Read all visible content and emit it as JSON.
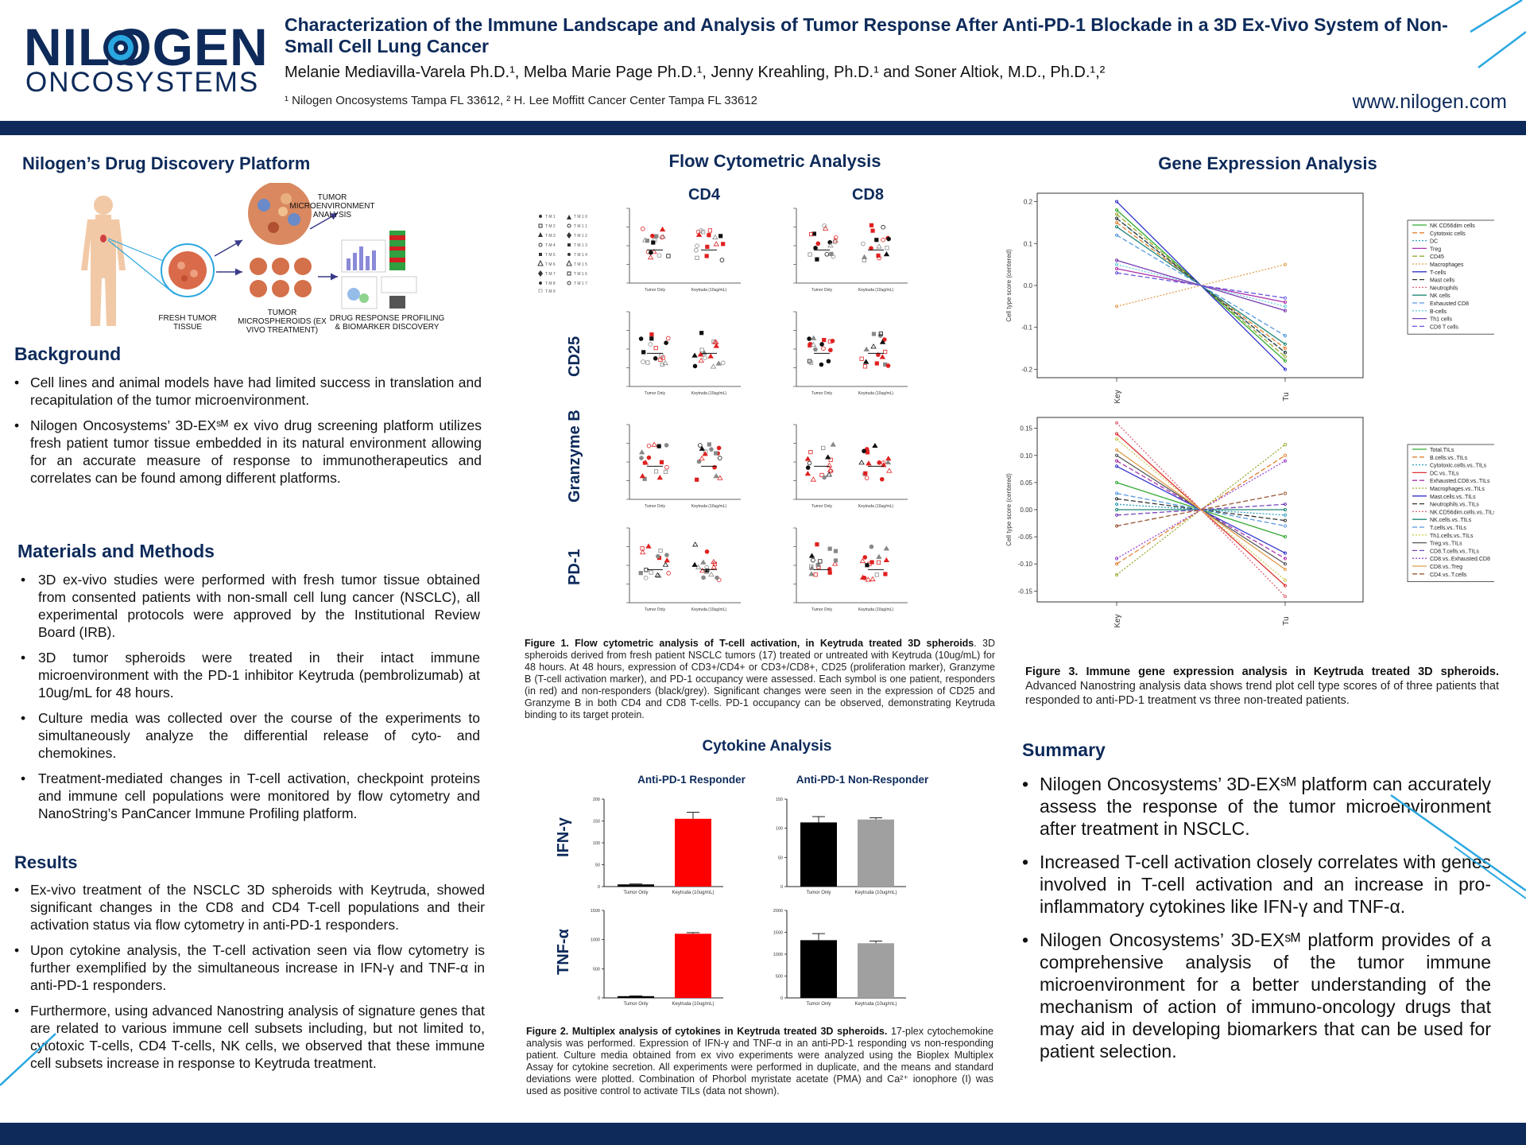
{
  "header": {
    "logo_top": "NILOGEN",
    "logo_bottom": "ONCOSYSTEMS",
    "title": "Characterization of the Immune Landscape and Analysis of Tumor Response After Anti-PD-1 Blockade in a 3D Ex-Vivo System of Non-Small Cell Lung Cancer",
    "authors": "Melanie Mediavilla-Varela Ph.D.¹, Melba Marie Page Ph.D.¹, Jenny Kreahling, Ph.D.¹ and Soner Altiok, M.D., Ph.D.¹,²",
    "affiliations": "¹ Nilogen Oncosystems Tampa FL 33612, ² H. Lee Moffitt Cancer Center Tampa FL 33612",
    "website": "www.nilogen.com"
  },
  "platform": {
    "heading": "Nilogen’s Drug Discovery Platform",
    "label_tme": "TUMOR MICROENVIRONMENT ANALYSIS",
    "label_fresh": "FRESH TUMOR TISSUE",
    "label_spheroids": "TUMOR MICROSPHEROIDS (EX VIVO TREATMENT)",
    "label_profiling": "DRUG RESPONSE PROFILING & BIOMARKER DISCOVERY"
  },
  "background": {
    "heading": "Background",
    "items": [
      "Cell lines and animal models have had limited success in translation and recapitulation of the tumor microenvironment.",
      "Nilogen Oncosystems’ 3D-EXˢᴹ ex vivo drug screening platform utilizes fresh patient tumor tissue embedded in its natural environment allowing for an accurate measure of response to immunotherapeutics and correlates can be found among different platforms."
    ]
  },
  "methods": {
    "heading": "Materials and Methods",
    "items": [
      "3D ex-vivo studies were performed with fresh tumor tissue obtained from consented patients with non-small cell lung cancer (NSCLC), all experimental protocols were approved by the Institutional Review Board (IRB).",
      "3D tumor spheroids were treated in their intact immune microenvironment with the PD-1 inhibitor Keytruda (pembrolizumab) at 10ug/mL for 48 hours.",
      "Culture media was collected over the course of the experiments to simultaneously analyze the differential release of cyto- and chemokines.",
      "Treatment-mediated changes in T-cell activation, checkpoint proteins and immune cell populations were monitored by flow cytometry and NanoString’s PanCancer Immune Profiling platform."
    ]
  },
  "results": {
    "heading": "Results",
    "items": [
      "Ex-vivo treatment of the NSCLC 3D spheroids with Keytruda, showed significant changes in the CD8 and CD4 T-cell populations and their activation status via flow cytometry in anti-PD-1 responders.",
      "Upon cytokine analysis, the T-cell activation seen via flow cytometry is further exemplified by the simultaneous increase in IFN-γ and TNF-α in anti-PD-1 responders.",
      "Furthermore, using advanced Nanostring analysis of signature genes that are related to various immune cell subsets including, but not limited to, cytotoxic T-cells, CD4 T-cells, NK cells, we observed that these immune cell subsets increase in response to Keytruda treatment."
    ]
  },
  "flow": {
    "heading": "Flow Cytometric Analysis",
    "col_cd4": "CD4",
    "col_cd8": "CD8",
    "row_cd25": "CD25",
    "row_gzmb": "Granzyme B",
    "row_pd1": "PD-1",
    "xcat1": "Tumor Only",
    "xcat2": "Keytruda (10ug/mL)",
    "caption_bold": "Figure 1. Flow cytometric analysis of T-cell activation, in Keytruda treated 3D spheroids",
    "caption": ". 3D spheroids derived from fresh patient NSCLC tumors (17) treated or untreated with Keytruda (10ug/mL) for 48 hours. At 48 hours, expression of CD3+/CD4+ or CD3+/CD8+, CD25 (proliferation marker), Granzyme B (T-cell activation marker), and PD-1 occupancy were assessed. Each symbol is one patient, responders (in red) and non-responders (black/grey). Significant changes were seen in the expression of CD25 and Granzyme B in both CD4 and CD8 T-cells. PD-1 occupancy can be observed, demonstrating Keytruda binding to its target protein."
  },
  "cytokine": {
    "heading": "Cytokine Analysis",
    "responder": "Anti-PD-1 Responder",
    "nonresponder": "Anti-PD-1 Non-Responder",
    "row_ifn": "IFN-γ",
    "row_tnf": "TNF-α",
    "caption_bold": "Figure 2. Multiplex analysis of cytokines in Keytruda treated 3D spheroids.",
    "caption": " 17-plex cytochemokine analysis was performed. Expression of IFN-γ and TNF-α in an anti-PD-1 responding vs non-responding patient. Culture media obtained from ex vivo experiments were analyzed using the Bioplex Multiplex Assay for cytokine secretion. All experiments were performed in duplicate, and the means and standard deviations were plotted. Combination of Phorbol myristate acetate (PMA) and Ca²⁺ ionophore (I) was used as positive control to activate TILs (data not shown)."
  },
  "gene": {
    "heading": "Gene Expression Analysis",
    "ylabel": "Cell type score (centered)",
    "x1": "Key",
    "x2": "Tu",
    "caption_bold": "Figure 3. Immune gene expression analysis in Keytruda treated 3D spheroids.",
    "caption": " Advanced Nanostring analysis data shows trend plot cell type scores of of three patients that responded to anti-PD-1 treatment vs three non-treated patients."
  },
  "summary": {
    "heading": "Summary",
    "items": [
      "Nilogen Oncosystems’ 3D-EXˢᴹ platform can accurately assess the response of the tumor microenvironment after treatment in NSCLC.",
      "Increased T-cell activation closely correlates with genes involved in T-cell activation and an increase in pro-inflammatory cytokines like IFN-γ and TNF-α.",
      "Nilogen Oncosystems’ 3D-EXˢᴹ platform provides of a comprehensive analysis of the tumor immune microenvironment for a better understanding of the mechanism of action of immuno-oncology drugs that may aid in developing biomarkers that can be used for patient selection."
    ]
  },
  "chart_data": [
    {
      "type": "bar",
      "title": "Anti-PD-1 Responder — IFN-γ",
      "categories": [
        "Tumor Only",
        "Keytruda (10ug/mL)"
      ],
      "values": [
        5,
        155
      ],
      "errors": [
        1,
        15
      ],
      "ylim": [
        0,
        200
      ],
      "yticks": [
        "0",
        "50",
        "100",
        "150",
        "200"
      ],
      "colors": [
        "#000000",
        "#ff0000"
      ]
    },
    {
      "type": "bar",
      "title": "Anti-PD-1 Non-Responder — IFN-γ",
      "categories": [
        "Tumor Only",
        "Keytruda (10ug/mL)"
      ],
      "values": [
        110,
        115
      ],
      "errors": [
        10,
        3
      ],
      "ylim": [
        0,
        150
      ],
      "yticks": [
        "0",
        "50",
        "100",
        "150"
      ],
      "colors": [
        "#000000",
        "#a0a0a0"
      ]
    },
    {
      "type": "bar",
      "title": "Anti-PD-1 Responder — TNF-α",
      "categories": [
        "Tumor Only",
        "Keytruda (10ug/mL)"
      ],
      "values": [
        30,
        1100
      ],
      "errors": [
        5,
        20
      ],
      "ylim": [
        0,
        1500
      ],
      "yticks": [
        "0",
        "500",
        "1000",
        "1500"
      ],
      "colors": [
        "#000000",
        "#ff0000"
      ]
    },
    {
      "type": "bar",
      "title": "Anti-PD-1 Non-Responder — TNF-α",
      "categories": [
        "Tumor Only",
        "Keytruda (10ug/mL)"
      ],
      "values": [
        1320,
        1250
      ],
      "errors": [
        150,
        50
      ],
      "ylim": [
        0,
        2000
      ],
      "yticks": [
        "0",
        "500",
        "1000",
        "1500",
        "2000"
      ],
      "colors": [
        "#000000",
        "#a0a0a0"
      ]
    },
    {
      "type": "line",
      "title": "Gene expression trend plot (cell types)",
      "x": [
        "Key",
        "Tu"
      ],
      "ylim": [
        -0.22,
        0.22
      ],
      "yticks": [
        "-0.2",
        "-0.1",
        "0.0",
        "0.1",
        "0.2"
      ],
      "ylabel": "Cell type score (centered)",
      "series": [
        {
          "name": "NK CD56dim cells",
          "values": [
            0.18,
            -0.18
          ],
          "color": "#33aa33"
        },
        {
          "name": "Cytotoxic cells",
          "values": [
            0.15,
            -0.15
          ],
          "color": "#e08030"
        },
        {
          "name": "DC",
          "values": [
            0.16,
            -0.16
          ],
          "color": "#30a0c0"
        },
        {
          "name": "Treg",
          "values": [
            0.04,
            -0.04
          ],
          "color": "#aa33aa"
        },
        {
          "name": "CD45",
          "values": [
            0.17,
            -0.17
          ],
          "color": "#99aa33"
        },
        {
          "name": "Macrophages",
          "values": [
            -0.05,
            0.05
          ],
          "color": "#e0a050"
        },
        {
          "name": "T-cells",
          "values": [
            0.2,
            -0.2
          ],
          "color": "#3333cc"
        },
        {
          "name": "Mast cells",
          "values": [
            0.16,
            -0.16
          ],
          "color": "#333333"
        },
        {
          "name": "Neutrophils",
          "values": [
            0.06,
            -0.06
          ],
          "color": "#dd6677"
        },
        {
          "name": "NK cells",
          "values": [
            0.14,
            -0.14
          ],
          "color": "#228877"
        },
        {
          "name": "Exhausted CD8",
          "values": [
            0.12,
            -0.12
          ],
          "color": "#5599dd"
        },
        {
          "name": "B-cells",
          "values": [
            0.05,
            -0.05
          ],
          "color": "#66ccdd"
        },
        {
          "name": "Th1 cells",
          "values": [
            0.06,
            -0.06
          ],
          "color": "#7744bb"
        },
        {
          "name": "CD8 T cells",
          "values": [
            0.03,
            -0.03
          ],
          "color": "#6655dd"
        }
      ]
    },
    {
      "type": "line",
      "title": "Gene expression trend plot (vs TILs)",
      "x": [
        "Key",
        "Tu"
      ],
      "ylim": [
        -0.17,
        0.17
      ],
      "yticks": [
        "-0.15",
        "-0.10",
        "-0.05",
        "0.00",
        "0.05",
        "0.10",
        "0.15"
      ],
      "ylabel": "Cell type score (centered)",
      "series": [
        {
          "name": "Total.TILs",
          "values": [
            0.05,
            -0.05
          ],
          "color": "#33aa33"
        },
        {
          "name": "B.cells.vs..TILs",
          "values": [
            -0.1,
            0.1
          ],
          "color": "#e08030"
        },
        {
          "name": "Cytotoxic.cells.vs..TILs",
          "values": [
            0.01,
            -0.01
          ],
          "color": "#30a0c0"
        },
        {
          "name": "DC.vs..TILs",
          "values": [
            0.14,
            -0.14
          ],
          "color": "#dd3333"
        },
        {
          "name": "Exhausted.CD8.vs..TILs",
          "values": [
            0.09,
            -0.09
          ],
          "color": "#aa33aa"
        },
        {
          "name": "Macrophages.vs..TILs",
          "values": [
            -0.12,
            0.12
          ],
          "color": "#99aa33"
        },
        {
          "name": "Mast.cells.vs..TILs",
          "values": [
            0.08,
            -0.08
          ],
          "color": "#3333cc"
        },
        {
          "name": "Neutrophils.vs..TILs",
          "values": [
            0.02,
            -0.02
          ],
          "color": "#333333"
        },
        {
          "name": "NK.CD56dim.cells.vs..TILs",
          "values": [
            0.16,
            -0.16
          ],
          "color": "#dd6677"
        },
        {
          "name": "NK.cells.vs..TILs",
          "values": [
            0.0,
            0.0
          ],
          "color": "#228877"
        },
        {
          "name": "T.cells.vs..TILs",
          "values": [
            0.03,
            -0.03
          ],
          "color": "#5599dd"
        },
        {
          "name": "Th1.cells.vs..TILs",
          "values": [
            0.13,
            -0.13
          ],
          "color": "#cccc55"
        },
        {
          "name": "Treg.vs..TILs",
          "values": [
            0.1,
            -0.1
          ],
          "color": "#555555"
        },
        {
          "name": "CD8.T.cells.vs..TILs",
          "values": [
            -0.01,
            0.01
          ],
          "color": "#7744bb"
        },
        {
          "name": "CD8.vs..Exhausted.CD8",
          "values": [
            -0.09,
            0.09
          ],
          "color": "#9944cc"
        },
        {
          "name": "CD8.vs..Treg",
          "values": [
            0.11,
            -0.11
          ],
          "color": "#e0a050"
        },
        {
          "name": "CD4.vs..T.cells",
          "values": [
            -0.03,
            0.03
          ],
          "color": "#995533"
        }
      ]
    }
  ]
}
